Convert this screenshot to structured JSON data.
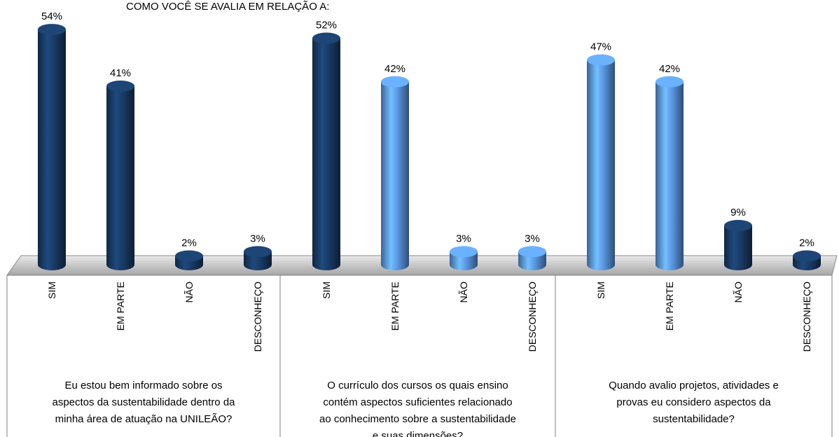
{
  "chart_data": {
    "type": "bar",
    "title": "COMO VOCÊ  SE AVALIA EM RELAÇÃO A:",
    "groups": [
      {
        "label_lines": [
          "Eu estou bem informado sobre os",
          "aspectos da sustentabilidade dentro da",
          "minha área de atuação na UNILEÃO?"
        ],
        "categories": [
          "SIM",
          "EM PARTE",
          "NÃO",
          "DESCONHEÇO"
        ],
        "values": [
          54,
          41,
          2,
          3
        ],
        "value_labels": [
          "54%",
          "41%",
          "2%",
          "3%"
        ],
        "colors": [
          "#17375e",
          "#17375e",
          "#17375e",
          "#17375e"
        ]
      },
      {
        "label_lines": [
          "O currículo dos cursos os quais ensino",
          "contém aspectos suficientes relacionado",
          "ao conhecimento sobre a sustentabilidade",
          "e suas dimensões?"
        ],
        "categories": [
          "SIM",
          "EM PARTE",
          "NÃO",
          "DESCONHEÇO"
        ],
        "values": [
          52,
          42,
          3,
          3
        ],
        "value_labels": [
          "52%",
          "42%",
          "3%",
          "3%"
        ],
        "colors": [
          "#17375e",
          "#558ed5",
          "#558ed5",
          "#558ed5"
        ]
      },
      {
        "label_lines": [
          "Quando avalio projetos, atividades e",
          "provas eu considero aspectos da",
          "sustentabilidade?"
        ],
        "categories": [
          "SIM",
          "EM PARTE",
          "NÃO",
          "DESCONHEÇO"
        ],
        "values": [
          47,
          42,
          9,
          2
        ],
        "value_labels": [
          "47%",
          "42%",
          "9%",
          "2%"
        ],
        "colors": [
          "#558ed5",
          "#558ed5",
          "#17375e",
          "#17375e"
        ]
      }
    ]
  }
}
